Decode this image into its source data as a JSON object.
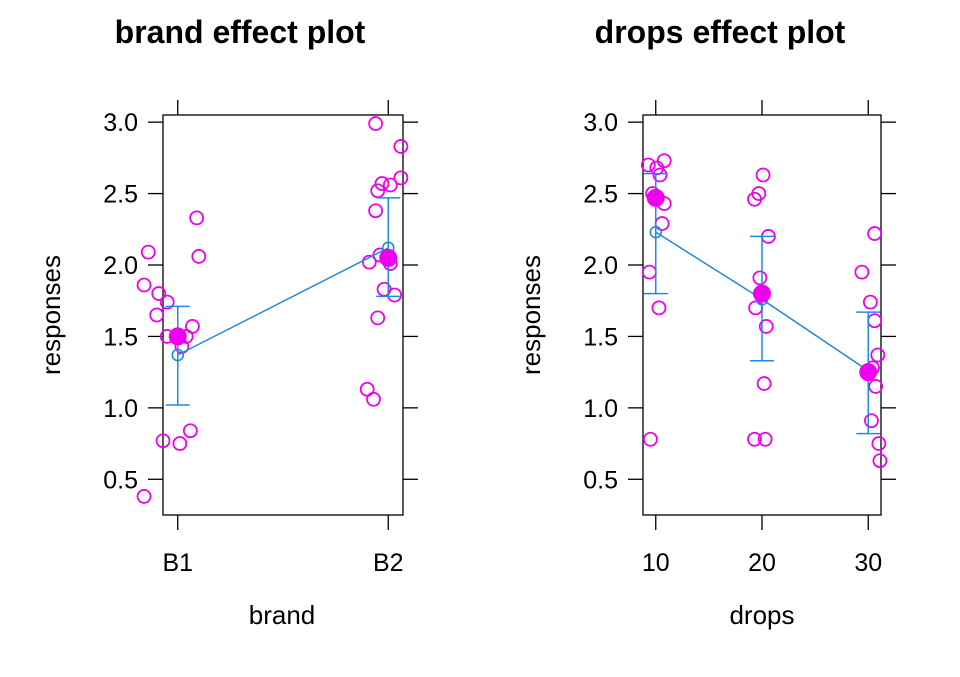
{
  "chart_data": [
    {
      "type": "scatter",
      "title": "brand effect plot",
      "xlabel": "brand",
      "ylabel": "responses",
      "categories": [
        "B1",
        "B2"
      ],
      "ylim": [
        0.25,
        3.05
      ],
      "yticks": [
        "0.5",
        "1.0",
        "1.5",
        "2.0",
        "2.5",
        "3.0"
      ],
      "points_color": "#ee00ee",
      "fit_color": "#1e8ae6",
      "raw_points": [
        {
          "x": 0.86,
          "y": 2.09
        },
        {
          "x": 0.84,
          "y": 1.86
        },
        {
          "x": 0.91,
          "y": 1.8
        },
        {
          "x": 0.95,
          "y": 1.74
        },
        {
          "x": 0.9,
          "y": 1.65
        },
        {
          "x": 1.07,
          "y": 1.57
        },
        {
          "x": 0.95,
          "y": 1.5
        },
        {
          "x": 1.04,
          "y": 1.5
        },
        {
          "x": 1.02,
          "y": 1.43
        },
        {
          "x": 1.09,
          "y": 2.33
        },
        {
          "x": 1.1,
          "y": 2.06
        },
        {
          "x": 1.06,
          "y": 0.84
        },
        {
          "x": 0.93,
          "y": 0.77
        },
        {
          "x": 1.01,
          "y": 0.75
        },
        {
          "x": 0.84,
          "y": 0.38
        },
        {
          "x": 1.94,
          "y": 2.99
        },
        {
          "x": 2.06,
          "y": 2.83
        },
        {
          "x": 2.06,
          "y": 2.61
        },
        {
          "x": 1.97,
          "y": 2.57
        },
        {
          "x": 2.01,
          "y": 2.56
        },
        {
          "x": 1.95,
          "y": 2.52
        },
        {
          "x": 1.94,
          "y": 2.38
        },
        {
          "x": 1.91,
          "y": 2.02
        },
        {
          "x": 1.96,
          "y": 2.07
        },
        {
          "x": 2.01,
          "y": 2.01
        },
        {
          "x": 1.98,
          "y": 1.83
        },
        {
          "x": 2.03,
          "y": 1.79
        },
        {
          "x": 1.95,
          "y": 1.63
        },
        {
          "x": 1.9,
          "y": 1.13
        },
        {
          "x": 1.93,
          "y": 1.06
        }
      ],
      "group_means": [
        {
          "x": 1,
          "y": 1.5
        },
        {
          "x": 2,
          "y": 2.05
        }
      ],
      "fitted": [
        {
          "x": 1,
          "y": 1.37,
          "lower": 1.02,
          "upper": 1.71
        },
        {
          "x": 2,
          "y": 2.12,
          "lower": 1.78,
          "upper": 2.47
        }
      ]
    },
    {
      "type": "scatter",
      "title": "drops effect plot",
      "xlabel": "drops",
      "ylabel": "responses",
      "xticks": [
        "10",
        "20",
        "30"
      ],
      "xlim": [
        8.8,
        31.2
      ],
      "ylim": [
        0.25,
        3.05
      ],
      "yticks": [
        "0.5",
        "1.0",
        "1.5",
        "2.0",
        "2.5",
        "3.0"
      ],
      "points_color": "#ee00ee",
      "fit_color": "#1e8ae6",
      "raw_points": [
        {
          "x": 10.8,
          "y": 2.73
        },
        {
          "x": 9.3,
          "y": 2.7
        },
        {
          "x": 10.1,
          "y": 2.68
        },
        {
          "x": 10.4,
          "y": 2.63
        },
        {
          "x": 9.7,
          "y": 2.5
        },
        {
          "x": 10.8,
          "y": 2.43
        },
        {
          "x": 10.6,
          "y": 2.29
        },
        {
          "x": 9.4,
          "y": 1.95
        },
        {
          "x": 10.3,
          "y": 1.7
        },
        {
          "x": 9.5,
          "y": 0.78
        },
        {
          "x": 20.1,
          "y": 2.63
        },
        {
          "x": 19.7,
          "y": 2.5
        },
        {
          "x": 19.3,
          "y": 2.46
        },
        {
          "x": 20.6,
          "y": 2.2
        },
        {
          "x": 19.8,
          "y": 1.91
        },
        {
          "x": 19.4,
          "y": 1.7
        },
        {
          "x": 20.4,
          "y": 1.57
        },
        {
          "x": 20.2,
          "y": 1.17
        },
        {
          "x": 19.3,
          "y": 0.78
        },
        {
          "x": 20.3,
          "y": 0.78
        },
        {
          "x": 30.6,
          "y": 2.22
        },
        {
          "x": 29.4,
          "y": 1.95
        },
        {
          "x": 30.2,
          "y": 1.74
        },
        {
          "x": 30.6,
          "y": 1.61
        },
        {
          "x": 30.9,
          "y": 1.37
        },
        {
          "x": 30.4,
          "y": 1.28
        },
        {
          "x": 30.7,
          "y": 1.15
        },
        {
          "x": 30.3,
          "y": 0.91
        },
        {
          "x": 31.0,
          "y": 0.75
        },
        {
          "x": 31.1,
          "y": 0.63
        }
      ],
      "group_means": [
        {
          "x": 10,
          "y": 2.47
        },
        {
          "x": 20,
          "y": 1.8
        },
        {
          "x": 30,
          "y": 1.25
        }
      ],
      "fitted": [
        {
          "x": 10,
          "y": 2.23,
          "lower": 1.8,
          "upper": 2.64
        },
        {
          "x": 20,
          "y": 1.76,
          "lower": 1.33,
          "upper": 2.2
        },
        {
          "x": 30,
          "y": 1.26,
          "lower": 0.82,
          "upper": 1.67
        }
      ]
    }
  ]
}
